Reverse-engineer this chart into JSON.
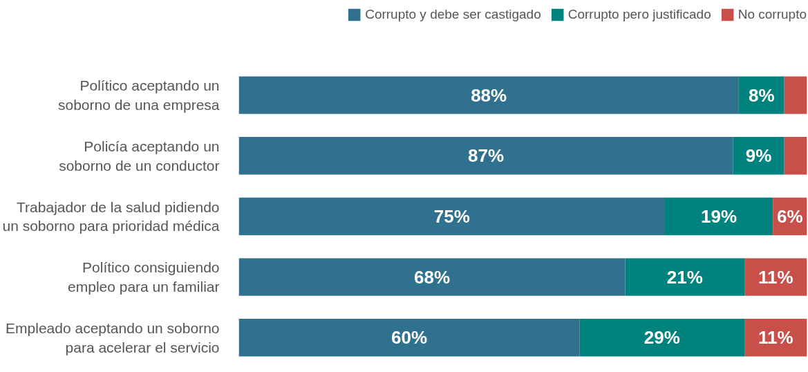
{
  "chart_data": {
    "type": "bar",
    "orientation": "horizontal",
    "stacked": true,
    "legend": "top right",
    "categories": [
      "Político aceptando un soborno de una empresa",
      "Policía aceptando un soborno de un conductor",
      "Trabajador de la salud pidiendo un soborno para prioridad médica",
      "Político consiguiendo empleo para un familiar",
      "Empleado aceptando un soborno para acelerar el servicio"
    ],
    "series": [
      {
        "name": "Corrupto y debe ser castigado",
        "color": "#30718f",
        "values": [
          88,
          87,
          75,
          68,
          60
        ],
        "value_labels": [
          "88%",
          "87%",
          "75%",
          "68%",
          "60%"
        ]
      },
      {
        "name": "Corrupto pero justificado",
        "color": "#00837f",
        "values": [
          8,
          9,
          19,
          21,
          29
        ],
        "value_labels": [
          "8%",
          "9%",
          "19%",
          "21%",
          "29%"
        ]
      },
      {
        "name": "No corrupto",
        "color": "#c9504a",
        "values": [
          4,
          4,
          6,
          11,
          11
        ],
        "value_labels": [
          null,
          null,
          "6%",
          "11%",
          "11%"
        ]
      }
    ]
  }
}
